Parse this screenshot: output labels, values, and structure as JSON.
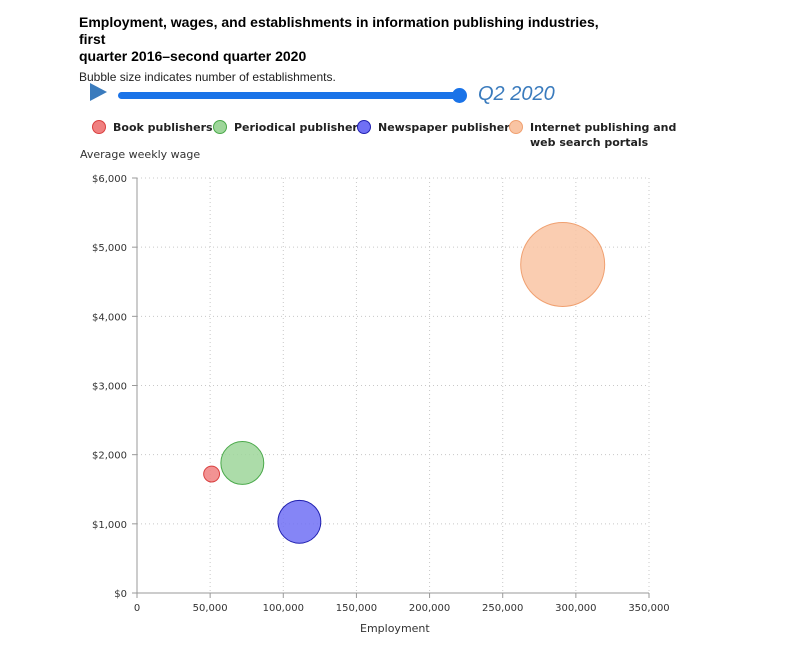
{
  "chart_data": {
    "type": "scatter",
    "title_lines": [
      "Employment, wages, and establishments in information publishing industries, first",
      "quarter 2016–second quarter 2020"
    ],
    "subtitle": "Bubble size indicates number of establishments.",
    "period_label": "Q2 2020",
    "xlabel": "Employment",
    "ylabel": "Average weekly wage",
    "xlim": [
      0,
      350000
    ],
    "ylim": [
      0,
      6000
    ],
    "x_ticks": [
      0,
      50000,
      100000,
      150000,
      200000,
      250000,
      300000,
      350000
    ],
    "x_tick_labels": [
      "0",
      "50,000",
      "100,000",
      "150,000",
      "200,000",
      "250,000",
      "300,000",
      "350,000"
    ],
    "y_ticks": [
      0,
      1000,
      2000,
      3000,
      4000,
      5000,
      6000
    ],
    "y_tick_labels": [
      "$0",
      "$1,000",
      "$2,000",
      "$3,000",
      "$4,000",
      "$5,000",
      "$6,000"
    ],
    "grid": "dotted",
    "legend_position": "top",
    "bubble_size_max": 42,
    "series": [
      {
        "name": "Book publishers",
        "name_lines": [
          "Book publishers"
        ],
        "color": "#f08080",
        "stroke": "#d94040",
        "x": 51000,
        "y": 1720,
        "size": 1.0
      },
      {
        "name": "Periodical publishers",
        "name_lines": [
          "Periodical publishers"
        ],
        "color": "#9ed69a",
        "stroke": "#4aa94a",
        "x": 72000,
        "y": 1880,
        "size": 7.3
      },
      {
        "name": "Newspaper publishers",
        "name_lines": [
          "Newspaper publishers"
        ],
        "color": "#7070f5",
        "stroke": "#2020b0",
        "x": 111000,
        "y": 1030,
        "size": 7.3
      },
      {
        "name": "Internet publishing and web search portals",
        "name_lines": [
          "Internet publishing and",
          "web search portals"
        ],
        "color": "#f9c4a3",
        "stroke": "#f0a070",
        "x": 291000,
        "y": 4750,
        "size": 28.0
      }
    ]
  }
}
